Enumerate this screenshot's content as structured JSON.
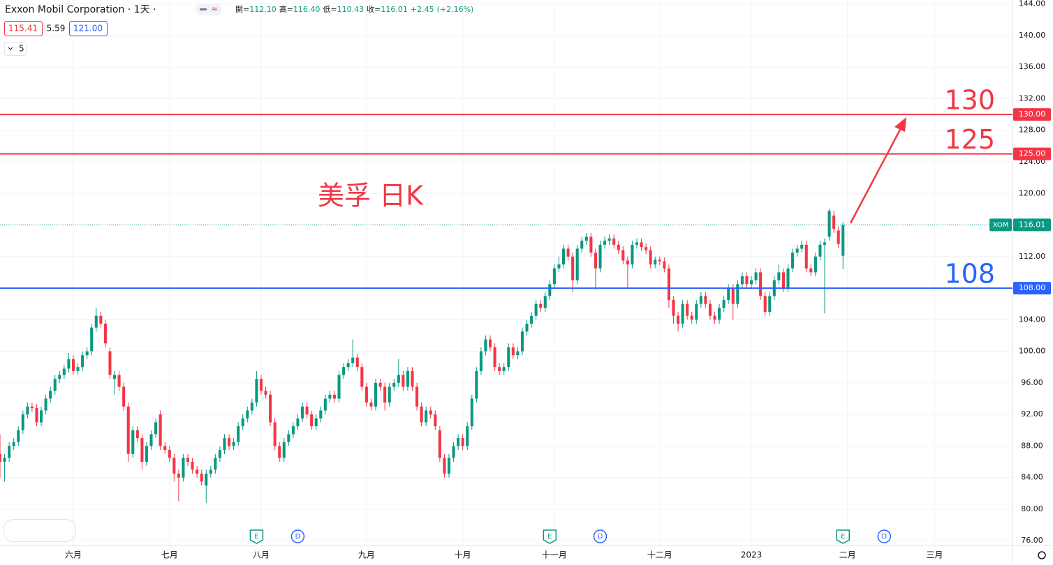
{
  "header": {
    "title": "Exxon Mobil Corporation · 1天 ·",
    "bid": "115.41",
    "spread": "5.59",
    "ask": "121.00",
    "interval": "5",
    "ohlc": [
      {
        "label": "開=",
        "value": "112.10"
      },
      {
        "label": "高=",
        "value": "116.40"
      },
      {
        "label": "低=",
        "value": "110.43"
      },
      {
        "label": "收=",
        "value": "116.01"
      }
    ],
    "change": "+2.45",
    "change_pct": "(+2.16%)"
  },
  "chart_data": {
    "type": "candlestick",
    "annotation": "美孚 日K",
    "up_color": "#089981",
    "down_color": "#f23645",
    "xlim": [
      0,
      221
    ],
    "xticks": [
      {
        "value": 16,
        "label": "六月"
      },
      {
        "value": 37,
        "label": "七月"
      },
      {
        "value": 57,
        "label": "八月"
      },
      {
        "value": 80,
        "label": "九月"
      },
      {
        "value": 101,
        "label": "十月"
      },
      {
        "value": 121,
        "label": "十一月"
      },
      {
        "value": 144,
        "label": "十二月"
      },
      {
        "value": 164,
        "label": "2023"
      },
      {
        "value": 185,
        "label": "二月"
      },
      {
        "value": 204,
        "label": "三月"
      }
    ],
    "ylim": [
      75.4,
      144.5
    ],
    "yticks": [
      {
        "value": 76,
        "label": "76.00"
      },
      {
        "value": 80,
        "label": "80.00"
      },
      {
        "value": 84,
        "label": "84.00"
      },
      {
        "value": 88,
        "label": "88.00"
      },
      {
        "value": 92,
        "label": "92.00"
      },
      {
        "value": 96,
        "label": "96.00"
      },
      {
        "value": 100,
        "label": "100.00"
      },
      {
        "value": 104,
        "label": "104.00"
      },
      {
        "value": 108,
        "label": "108.00"
      },
      {
        "value": 112,
        "label": "112.00"
      },
      {
        "value": 116,
        "label": "116.00"
      },
      {
        "value": 120,
        "label": "120.00"
      },
      {
        "value": 124,
        "label": "124.00"
      },
      {
        "value": 128,
        "label": "128.00"
      },
      {
        "value": 132,
        "label": "132.00"
      },
      {
        "value": 136,
        "label": "136.00"
      },
      {
        "value": 140,
        "label": "140.00"
      },
      {
        "value": 144,
        "label": "144.00"
      }
    ],
    "grid": true,
    "hlines": [
      {
        "value": 130,
        "label": "130.00",
        "annotation": "130",
        "color": "#f23645"
      },
      {
        "value": 125,
        "label": "125.00",
        "annotation": "125",
        "color": "#f23645"
      },
      {
        "value": 108,
        "label": "108.00",
        "annotation": "108",
        "color": "#2962ff"
      }
    ],
    "last_price": {
      "symbol": "XOM",
      "value": 116.01,
      "label": "116.01",
      "color": "#089981"
    },
    "events": [
      {
        "label": "E",
        "x": 56
      },
      {
        "label": "D",
        "x": 65
      },
      {
        "label": "E",
        "x": 120
      },
      {
        "label": "D",
        "x": 131
      },
      {
        "label": "E",
        "x": 184
      },
      {
        "label": "D",
        "x": 193
      }
    ],
    "candles": [
      [
        87,
        89.5,
        84,
        86
      ],
      [
        86,
        87,
        83.5,
        86.5
      ],
      [
        86.5,
        88.5,
        86,
        88
      ],
      [
        88,
        89,
        87.5,
        88.5
      ],
      [
        88.5,
        90.5,
        88,
        90
      ],
      [
        90,
        92.5,
        89.5,
        92
      ],
      [
        92,
        93.5,
        91.5,
        93
      ],
      [
        93,
        93.5,
        92.3,
        92.8
      ],
      [
        92.8,
        93.3,
        90.5,
        91
      ],
      [
        91,
        93,
        90.5,
        92.5
      ],
      [
        92.5,
        94.5,
        92,
        94
      ],
      [
        94,
        95.5,
        93.5,
        95
      ],
      [
        95,
        97,
        94.5,
        96.5
      ],
      [
        96.5,
        97.5,
        96,
        97
      ],
      [
        97,
        98.3,
        96.5,
        97.8
      ],
      [
        97.8,
        99.8,
        97.3,
        99
      ],
      [
        99,
        99.5,
        97,
        97.5
      ],
      [
        97.5,
        98.5,
        97,
        98
      ],
      [
        98,
        100,
        97.5,
        99.5
      ],
      [
        99.5,
        100.5,
        99,
        100
      ],
      [
        100,
        103.5,
        99.5,
        103
      ],
      [
        103,
        105.5,
        102.5,
        104.5
      ],
      [
        104.5,
        105,
        103,
        103.5
      ],
      [
        103.5,
        104,
        100.5,
        101
      ],
      [
        100,
        100.5,
        96.5,
        97
      ],
      [
        96.5,
        97.5,
        94.5,
        97
      ],
      [
        97,
        97.5,
        95,
        95.5
      ],
      [
        95.5,
        96,
        92.5,
        93
      ],
      [
        93,
        93.5,
        86,
        87
      ],
      [
        87,
        90.5,
        86.5,
        90
      ],
      [
        90,
        90.5,
        88.5,
        89
      ],
      [
        89,
        89.5,
        85,
        86
      ],
      [
        86,
        88.5,
        85.5,
        88
      ],
      [
        88,
        90,
        87.5,
        89.5
      ],
      [
        89.5,
        91.5,
        89,
        91
      ],
      [
        92,
        92.5,
        87.5,
        88
      ],
      [
        88,
        88.5,
        87,
        87.5
      ],
      [
        87.5,
        88,
        86,
        86.5
      ],
      [
        86.5,
        87,
        83.5,
        84.5
      ],
      [
        84.5,
        85,
        81,
        84
      ],
      [
        84,
        87,
        83.5,
        86.5
      ],
      [
        86.5,
        87,
        85.5,
        86
      ],
      [
        86,
        86.5,
        84.5,
        85
      ],
      [
        85,
        85.5,
        84,
        84.5
      ],
      [
        84.5,
        85,
        83,
        83.5
      ],
      [
        83,
        85,
        80.8,
        84.5
      ],
      [
        84.5,
        85.5,
        84,
        85
      ],
      [
        85,
        87,
        84.5,
        86.5
      ],
      [
        86.5,
        88,
        86,
        87.5
      ],
      [
        87.5,
        89.5,
        87,
        89
      ],
      [
        89,
        89.5,
        87.5,
        88
      ],
      [
        88,
        89,
        87.5,
        88.5
      ],
      [
        88.5,
        91,
        88,
        90.5
      ],
      [
        90.5,
        92,
        90,
        91.5
      ],
      [
        91.5,
        93,
        91,
        92.5
      ],
      [
        92.5,
        94,
        92,
        93.5
      ],
      [
        93.5,
        97.5,
        93,
        96.5
      ],
      [
        96.5,
        97,
        94.5,
        95
      ],
      [
        95,
        95.5,
        94,
        94.5
      ],
      [
        94.5,
        95,
        90.5,
        91
      ],
      [
        91,
        91.5,
        87.5,
        88
      ],
      [
        88,
        88.5,
        86,
        86.5
      ],
      [
        86.5,
        89,
        86,
        88.5
      ],
      [
        88.5,
        90,
        88,
        89.5
      ],
      [
        89.5,
        91,
        89,
        90.5
      ],
      [
        90.5,
        92,
        90,
        91.5
      ],
      [
        91.5,
        93.5,
        91,
        93
      ],
      [
        93,
        93.5,
        91.5,
        92
      ],
      [
        92,
        92.5,
        90,
        90.5
      ],
      [
        90.5,
        92,
        90,
        91.5
      ],
      [
        91.5,
        93,
        91,
        92.5
      ],
      [
        92.5,
        94.5,
        92,
        94
      ],
      [
        94,
        95,
        93.5,
        94.5
      ],
      [
        94.5,
        95,
        93.5,
        94
      ],
      [
        94,
        97.5,
        93.5,
        97
      ],
      [
        97,
        98.5,
        96.5,
        98
      ],
      [
        98,
        99,
        97.5,
        98.5
      ],
      [
        98.5,
        101.5,
        98,
        99.2
      ],
      [
        99.2,
        99.7,
        97.5,
        98
      ],
      [
        98,
        98.5,
        95,
        95.5
      ],
      [
        95.5,
        96,
        93,
        93.5
      ],
      [
        93.5,
        94,
        92.5,
        93
      ],
      [
        93,
        96.5,
        92.5,
        96
      ],
      [
        96,
        96.5,
        95,
        95.5
      ],
      [
        95.5,
        96,
        92.5,
        93.5
      ],
      [
        93.5,
        96,
        93,
        95.5
      ],
      [
        95.5,
        96.5,
        95,
        96
      ],
      [
        96,
        99,
        95.5,
        97
      ],
      [
        97,
        97.5,
        95,
        95.5
      ],
      [
        95.5,
        98,
        95,
        97.5
      ],
      [
        97.5,
        98,
        95,
        95.5
      ],
      [
        95.5,
        96,
        92.5,
        93
      ],
      [
        93,
        93.5,
        90.5,
        91
      ],
      [
        91,
        93,
        90.5,
        92.5
      ],
      [
        92.5,
        93,
        91.5,
        92
      ],
      [
        92,
        92.5,
        90,
        90.5
      ],
      [
        90,
        90.5,
        86,
        86.5
      ],
      [
        86.5,
        87,
        84,
        84.5
      ],
      [
        84.5,
        87,
        84,
        86.5
      ],
      [
        86.5,
        88.5,
        86,
        88
      ],
      [
        88,
        89.5,
        87.5,
        89
      ],
      [
        89,
        89.5,
        87.5,
        88
      ],
      [
        88,
        91,
        87.5,
        90.5
      ],
      [
        90.5,
        94.5,
        90,
        94
      ],
      [
        94,
        98,
        93.5,
        97.5
      ],
      [
        97.5,
        100.5,
        97,
        100
      ],
      [
        100,
        102,
        99.5,
        101.5
      ],
      [
        101.5,
        102,
        100,
        100.5
      ],
      [
        100.5,
        101,
        97.5,
        98
      ],
      [
        98,
        98.5,
        97,
        97.5
      ],
      [
        97.5,
        98.5,
        97,
        98
      ],
      [
        98,
        101,
        97.5,
        100.5
      ],
      [
        100.5,
        101,
        99,
        99.5
      ],
      [
        99.5,
        100.5,
        99,
        100
      ],
      [
        100,
        103,
        99.5,
        102.5
      ],
      [
        102.5,
        104,
        102,
        103.5
      ],
      [
        103.5,
        105,
        103,
        104.5
      ],
      [
        104.5,
        106.5,
        104,
        106
      ],
      [
        106,
        106.5,
        105,
        105.5
      ],
      [
        105.5,
        107.5,
        105,
        107
      ],
      [
        107,
        109,
        106.5,
        108.5
      ],
      [
        108.5,
        111,
        108,
        110.5
      ],
      [
        110.5,
        112,
        110,
        111
      ],
      [
        111,
        113.5,
        110.5,
        113
      ],
      [
        113,
        113.5,
        111.5,
        112
      ],
      [
        112,
        112.5,
        107.5,
        109
      ],
      [
        109,
        113.5,
        108.5,
        113
      ],
      [
        113,
        114.5,
        112.5,
        114
      ],
      [
        114,
        115,
        113.5,
        114.5
      ],
      [
        114.5,
        115,
        112,
        112.5
      ],
      [
        112.5,
        113,
        107.8,
        110.5
      ],
      [
        110.5,
        114,
        110,
        113.5
      ],
      [
        113.5,
        114.5,
        113,
        114
      ],
      [
        114,
        114.8,
        113.5,
        114.3
      ],
      [
        114.3,
        114.8,
        113,
        113.5
      ],
      [
        113.5,
        114,
        112.3,
        112.8
      ],
      [
        112.8,
        113.3,
        111,
        111.5
      ],
      [
        111.5,
        112,
        108,
        111
      ],
      [
        111,
        114,
        110.5,
        113.5
      ],
      [
        113.5,
        114.3,
        113,
        113.8
      ],
      [
        113.8,
        114.3,
        112.7,
        113.2
      ],
      [
        113.2,
        113.7,
        112.3,
        112.8
      ],
      [
        112.8,
        113.3,
        110.5,
        111
      ],
      [
        111,
        112,
        110.5,
        111.6
      ],
      [
        111.6,
        112,
        110.9,
        111.4
      ],
      [
        111.4,
        111.9,
        110,
        110.5
      ],
      [
        110.5,
        111,
        105.5,
        106.5
      ],
      [
        106.5,
        107,
        103.5,
        104.5
      ],
      [
        104.5,
        105,
        102.5,
        103.5
      ],
      [
        103.5,
        106.5,
        103,
        106
      ],
      [
        106,
        106.5,
        104,
        104.5
      ],
      [
        104.5,
        105,
        103.5,
        104
      ],
      [
        104,
        106.5,
        103.5,
        106
      ],
      [
        106,
        107.5,
        105.5,
        107
      ],
      [
        107,
        107.5,
        105.5,
        106
      ],
      [
        106,
        106.5,
        104,
        104.5
      ],
      [
        104.5,
        105,
        103.5,
        104
      ],
      [
        104,
        106,
        103.5,
        105.5
      ],
      [
        105.5,
        107,
        105,
        106.5
      ],
      [
        106.5,
        108.5,
        106,
        108
      ],
      [
        108,
        108.5,
        104,
        106
      ],
      [
        106,
        109,
        105.5,
        108.5
      ],
      [
        108.5,
        110,
        108,
        109.5
      ],
      [
        109.5,
        110,
        108,
        108.5
      ],
      [
        108.5,
        109.5,
        108,
        109
      ],
      [
        109,
        110.5,
        108.5,
        110
      ],
      [
        110,
        110.5,
        106.5,
        107
      ],
      [
        107,
        107.5,
        104.5,
        105
      ],
      [
        105,
        107.5,
        104.5,
        107
      ],
      [
        107,
        109.5,
        106.5,
        109
      ],
      [
        109,
        111,
        108.5,
        110
      ],
      [
        110,
        110.5,
        107.5,
        108
      ],
      [
        108,
        111,
        107.5,
        110.5
      ],
      [
        110.5,
        113,
        110,
        112.5
      ],
      [
        112.5,
        113.5,
        112,
        113
      ],
      [
        113,
        114,
        112.5,
        113.5
      ],
      [
        113.5,
        114,
        110,
        110.5
      ],
      [
        110.5,
        111,
        109.5,
        110
      ],
      [
        110,
        112.5,
        109.5,
        112
      ],
      [
        112,
        114,
        111.5,
        113.5
      ],
      [
        113.5,
        114.3,
        104.8,
        113.8
      ],
      [
        114.5,
        118,
        114,
        117.8
      ],
      [
        117.2,
        117.8,
        115,
        115.5
      ],
      [
        115.3,
        115.8,
        113.1,
        113.6
      ],
      [
        112.1,
        116.4,
        110.43,
        116.01
      ]
    ]
  }
}
